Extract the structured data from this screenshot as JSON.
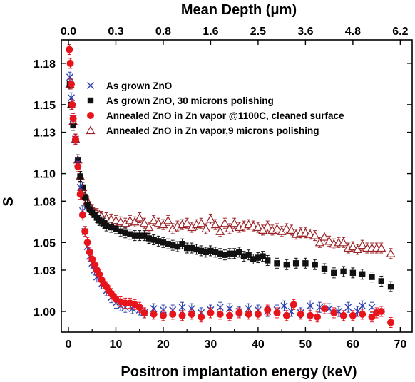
{
  "chart_data": {
    "type": "scatter",
    "xlabel": "Positron implantation energy (keV)",
    "ylabel": "S",
    "top_xlabel": "Mean Depth (μm)",
    "xlim": [
      -1.5,
      72.5
    ],
    "ylim": [
      0.985,
      1.197
    ],
    "x_ticks": [
      0,
      10,
      20,
      30,
      40,
      50,
      60,
      70
    ],
    "y_ticks": [
      1.0,
      1.03,
      1.05,
      1.08,
      1.1,
      1.13,
      1.15,
      1.18
    ],
    "y_tick_labels": [
      "1.00",
      "1.03",
      "1.05",
      "1.08",
      "1.10",
      "1.13",
      "1.15",
      "1.18"
    ],
    "top_ticks": [
      {
        "energy": 0,
        "label": "0.0"
      },
      {
        "energy": 10,
        "label": "0.3"
      },
      {
        "energy": 20,
        "label": "0.8"
      },
      {
        "energy": 30,
        "label": "1.6"
      },
      {
        "energy": 40,
        "label": "2.5"
      },
      {
        "energy": 50,
        "label": "3.6"
      },
      {
        "energy": 60,
        "label": "4.8"
      },
      {
        "energy": 70,
        "label": "6.2"
      }
    ],
    "grid": false,
    "legend_position": "top-right",
    "series": [
      {
        "name": "As grown ZnO",
        "marker": "x",
        "color": "#2a3fb0",
        "x": [
          0.3,
          0.6,
          1.0,
          1.5,
          2.0,
          2.5,
          3.0,
          3.5,
          4.0,
          4.5,
          5.0,
          5.5,
          6.0,
          7.0,
          8.0,
          9.0,
          10.0,
          11.0,
          12.0,
          13.5,
          15.0,
          16.0,
          18.0,
          20.0,
          22.0,
          24.0,
          26.0,
          28.0,
          30.0,
          32.0,
          34.0,
          36.0,
          38.0,
          40.0,
          42.0,
          44.0,
          45.5,
          47.0,
          49.0,
          51.0,
          53.0,
          55.0,
          57.0,
          59.0,
          61.0,
          62.0,
          64.0,
          66.0
        ],
        "y": [
          1.17,
          1.155,
          1.14,
          1.125,
          1.108,
          1.09,
          1.073,
          1.058,
          1.047,
          1.04,
          1.035,
          1.03,
          1.025,
          1.02,
          1.015,
          1.01,
          1.006,
          1.004,
          1.003,
          1.002,
          1.001,
          0.999,
          1.002,
          1.001,
          1.001,
          1.003,
          1.002,
          0.999,
          1.001,
          1.003,
          1.002,
          1.0,
          1.002,
          1.001,
          1.0,
          1.001,
          1.004,
          1.0,
          0.999,
          1.004,
          1.003,
          1.002,
          1.0,
          1.003,
          1.0,
          1.004,
          1.003,
          1.0
        ]
      },
      {
        "name": "As grown  ZnO, 30 microns polishing",
        "marker": "square",
        "color": "#111111",
        "x": [
          0.3,
          0.6,
          1.0,
          1.5,
          2.0,
          2.5,
          3.0,
          3.5,
          4.0,
          4.5,
          5.0,
          5.5,
          6.0,
          6.5,
          7.0,
          7.5,
          8.0,
          9.0,
          10.0,
          11.0,
          12.0,
          13.0,
          14.0,
          15.0,
          16.0,
          17.0,
          18.0,
          19.0,
          20.0,
          21.0,
          22.0,
          23.0,
          24.0,
          25.0,
          26.0,
          27.0,
          28.0,
          29.0,
          30.0,
          31.0,
          32.0,
          33.0,
          34.0,
          35.0,
          36.0,
          37.0,
          38.0,
          39.0,
          40.0,
          41.0,
          42.0,
          44.0,
          46.0,
          48.0,
          50.0,
          52.0,
          54.0,
          56.0,
          58.0,
          60.0,
          62.0,
          64.0,
          66.0,
          68.0
        ],
        "y": [
          1.165,
          1.15,
          1.135,
          1.125,
          1.11,
          1.098,
          1.09,
          1.083,
          1.077,
          1.074,
          1.072,
          1.07,
          1.068,
          1.066,
          1.065,
          1.064,
          1.062,
          1.061,
          1.06,
          1.058,
          1.057,
          1.056,
          1.055,
          1.055,
          1.055,
          1.053,
          1.052,
          1.051,
          1.05,
          1.049,
          1.048,
          1.047,
          1.049,
          1.046,
          1.046,
          1.045,
          1.044,
          1.043,
          1.044,
          1.043,
          1.042,
          1.041,
          1.042,
          1.042,
          1.043,
          1.04,
          1.041,
          1.038,
          1.039,
          1.04,
          1.037,
          1.035,
          1.034,
          1.035,
          1.035,
          1.034,
          1.031,
          1.028,
          1.029,
          1.028,
          1.027,
          1.025,
          1.022,
          1.018
        ]
      },
      {
        "name": "Annealed ZnO in Zn vapor @1100C, cleaned surface",
        "marker": "circle",
        "color": "#e8141c",
        "x": [
          0.2,
          0.4,
          0.6,
          0.8,
          1.0,
          1.5,
          2.0,
          2.5,
          3.0,
          3.5,
          4.0,
          4.5,
          5.0,
          5.5,
          6.0,
          6.5,
          7.0,
          7.5,
          8.0,
          8.5,
          9.0,
          9.5,
          10.0,
          11.0,
          12.0,
          13.0,
          14.0,
          15.0,
          16.0,
          18.0,
          20.0,
          22.0,
          24.0,
          26.0,
          28.0,
          30.0,
          32.0,
          34.0,
          36.0,
          38.0,
          40.0,
          42.0,
          44.0,
          46.0,
          47.5,
          49.0,
          51.0,
          52.5,
          54.0,
          56.0,
          58.0,
          60.0,
          62.0,
          64.0,
          65.0,
          66.0,
          68.0
        ],
        "y": [
          1.19,
          1.18,
          1.165,
          1.15,
          1.14,
          1.125,
          1.105,
          1.085,
          1.07,
          1.058,
          1.05,
          1.043,
          1.038,
          1.034,
          1.03,
          1.027,
          1.023,
          1.02,
          1.018,
          1.015,
          1.013,
          1.011,
          1.009,
          1.007,
          1.006,
          1.006,
          1.005,
          1.003,
          0.999,
          0.998,
          0.997,
          0.998,
          0.997,
          0.998,
          0.996,
          0.999,
          0.998,
          0.997,
          0.999,
          0.998,
          0.998,
          1.001,
          0.999,
          0.997,
          1.005,
          0.998,
          0.997,
          0.996,
          1.002,
          0.999,
          0.997,
          0.997,
          0.998,
          0.996,
          0.999,
          1.0,
          0.992
        ]
      },
      {
        "name": "Annealed ZnO in Zn vapor,9 microns polishing",
        "marker": "triangle",
        "color": "#9b2227",
        "x": [
          0.3,
          0.6,
          1.0,
          1.5,
          2.0,
          2.5,
          3.0,
          3.5,
          4.0,
          4.5,
          5.0,
          5.5,
          6.0,
          6.5,
          7.0,
          8.0,
          9.0,
          10.0,
          11.0,
          12.0,
          13.0,
          14.0,
          15.0,
          16.0,
          17.0,
          18.0,
          19.0,
          20.0,
          21.0,
          22.0,
          23.0,
          24.0,
          25.0,
          26.0,
          27.0,
          28.0,
          29.0,
          30.0,
          31.0,
          32.0,
          33.0,
          34.0,
          35.0,
          36.0,
          37.0,
          38.0,
          39.0,
          40.0,
          41.0,
          42.0,
          43.0,
          44.0,
          45.0,
          46.0,
          47.0,
          48.0,
          49.0,
          50.0,
          51.0,
          52.0,
          53.0,
          54.0,
          55.0,
          56.0,
          57.0,
          58.0,
          59.0,
          60.0,
          61.0,
          62.0,
          63.0,
          64.0,
          65.0,
          66.0,
          68.0
        ],
        "y": [
          1.165,
          1.15,
          1.138,
          1.125,
          1.11,
          1.098,
          1.09,
          1.084,
          1.08,
          1.076,
          1.074,
          1.072,
          1.071,
          1.07,
          1.069,
          1.068,
          1.067,
          1.066,
          1.065,
          1.064,
          1.066,
          1.065,
          1.068,
          1.064,
          1.061,
          1.066,
          1.064,
          1.063,
          1.066,
          1.06,
          1.062,
          1.063,
          1.064,
          1.061,
          1.063,
          1.064,
          1.06,
          1.067,
          1.063,
          1.058,
          1.064,
          1.06,
          1.064,
          1.061,
          1.062,
          1.063,
          1.062,
          1.061,
          1.059,
          1.062,
          1.059,
          1.06,
          1.058,
          1.06,
          1.059,
          1.056,
          1.057,
          1.057,
          1.056,
          1.055,
          1.05,
          1.054,
          1.051,
          1.049,
          1.05,
          1.05,
          1.046,
          1.047,
          1.045,
          1.048,
          1.046,
          1.046,
          1.046,
          1.046,
          1.042
        ]
      }
    ]
  }
}
